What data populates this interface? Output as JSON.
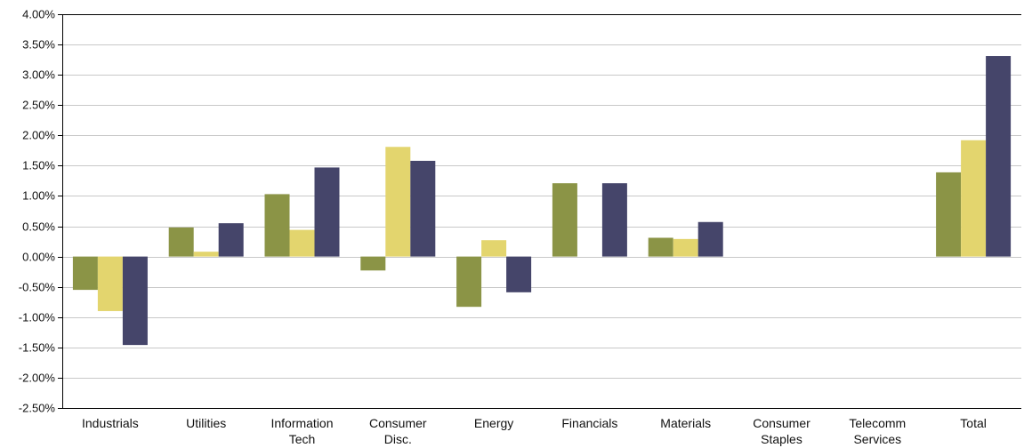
{
  "chart_data": {
    "type": "bar",
    "title": "",
    "xlabel": "",
    "ylabel": "",
    "ylim": [
      -0.025,
      0.04
    ],
    "ytick_step": 0.005,
    "grid": true,
    "categories": [
      [
        "Industrials"
      ],
      [
        "Utilities"
      ],
      [
        "Information",
        "Tech"
      ],
      [
        "Consumer",
        "Disc."
      ],
      [
        "Energy"
      ],
      [
        "Financials"
      ],
      [
        "Materials"
      ],
      [
        "Consumer",
        "Staples"
      ],
      [
        "Telecomm",
        "Services"
      ],
      [
        "Total"
      ]
    ],
    "series": [
      {
        "color": "#8b9446",
        "values": [
          -0.0055,
          0.0048,
          0.0103,
          -0.0023,
          -0.0083,
          0.0121,
          0.0031,
          0,
          0,
          0.0139
        ]
      },
      {
        "color": "#e3d56e",
        "values": [
          -0.009,
          0.0008,
          0.0044,
          0.0181,
          0.0027,
          0,
          0.0029,
          0,
          0,
          0.0192
        ]
      },
      {
        "color": "#45456a",
        "values": [
          -0.0146,
          0.0055,
          0.0147,
          0.0158,
          -0.0059,
          0.0121,
          0.0057,
          0,
          0,
          0.0331
        ]
      }
    ]
  }
}
